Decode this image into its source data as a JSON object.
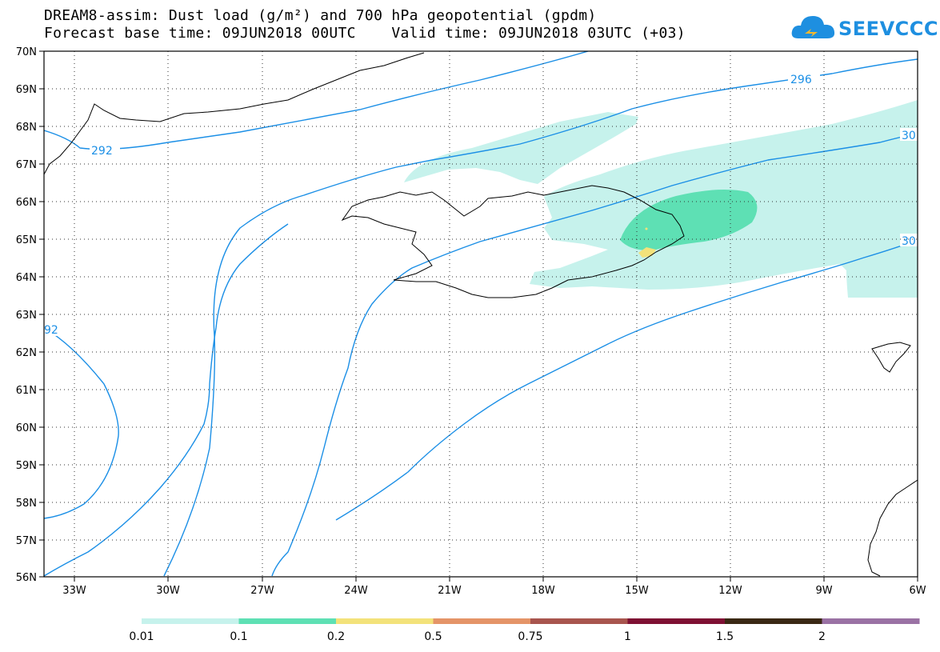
{
  "header": {
    "line1": "DREAM8-assim: Dust load (g/m²) and 700 hPa geopotential (gpdm)",
    "line2": "Forecast base time: 09JUN2018 00UTC    Valid time: 09JUN2018 03UTC (+03)"
  },
  "logo": {
    "text": "SEEVCCC",
    "icon": "cloud-icon",
    "color": "#1e8fe0"
  },
  "map": {
    "lat_labels": [
      "70N",
      "69N",
      "68N",
      "67N",
      "66N",
      "65N",
      "64N",
      "63N",
      "62N",
      "61N",
      "60N",
      "59N",
      "58N",
      "57N",
      "56N"
    ],
    "lon_labels": [
      "33W",
      "30W",
      "27W",
      "24W",
      "21W",
      "18W",
      "15W",
      "12W",
      "9W",
      "6W"
    ],
    "contour_color": "#1b8fe6",
    "contour_labels": [
      "296",
      "292",
      "92",
      "30",
      "30"
    ]
  },
  "colorbar": {
    "labels": [
      "0.01",
      "0.1",
      "0.2",
      "0.5",
      "0.75",
      "1",
      "1.5",
      "2"
    ],
    "colors": [
      "#c6f2ec",
      "#5ee0b4",
      "#f3e27a",
      "#e49468",
      "#a8554e",
      "#7e1033",
      "#3a2814",
      "#9a72a4"
    ]
  }
}
